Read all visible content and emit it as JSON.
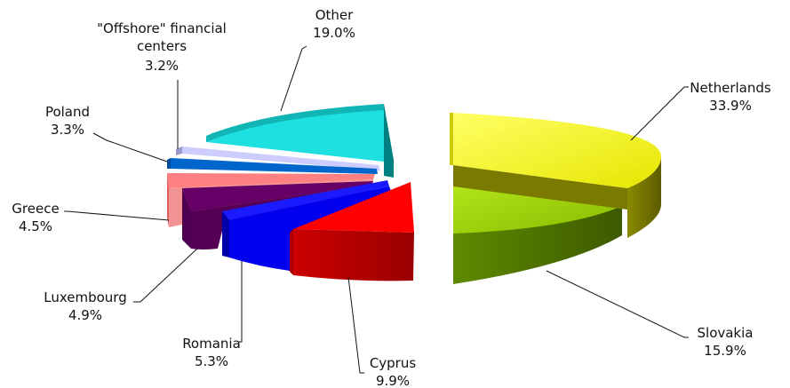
{
  "chart_data": {
    "type": "pie",
    "title": "",
    "three_d": true,
    "exploded": true,
    "slices": [
      {
        "label": "Netherlands",
        "percent_label": "33.9%",
        "value": 33.9,
        "color": "#f0f01a"
      },
      {
        "label": "Slovakia",
        "percent_label": "15.9%",
        "value": 15.9,
        "color": "#99cc00"
      },
      {
        "label": "Cyprus",
        "percent_label": "9.9%",
        "value": 9.9,
        "color": "#ff0000"
      },
      {
        "label": "Romania",
        "percent_label": "5.3%",
        "value": 5.3,
        "color": "#0000ff"
      },
      {
        "label": "Luxembourg",
        "percent_label": "4.9%",
        "value": 4.9,
        "color": "#660066"
      },
      {
        "label": "Greece",
        "percent_label": "4.5%",
        "value": 4.5,
        "color": "#ff8080"
      },
      {
        "label": "Poland",
        "percent_label": "3.3%",
        "value": 3.3,
        "color": "#0066cc"
      },
      {
        "label": "\"Offshore\" financial centers",
        "percent_label": "3.2%",
        "value": 3.2,
        "color": "#ccccff"
      },
      {
        "label": "Other",
        "percent_label": "19.0%",
        "value": 19.0,
        "color": "#1fe0e0"
      }
    ]
  }
}
